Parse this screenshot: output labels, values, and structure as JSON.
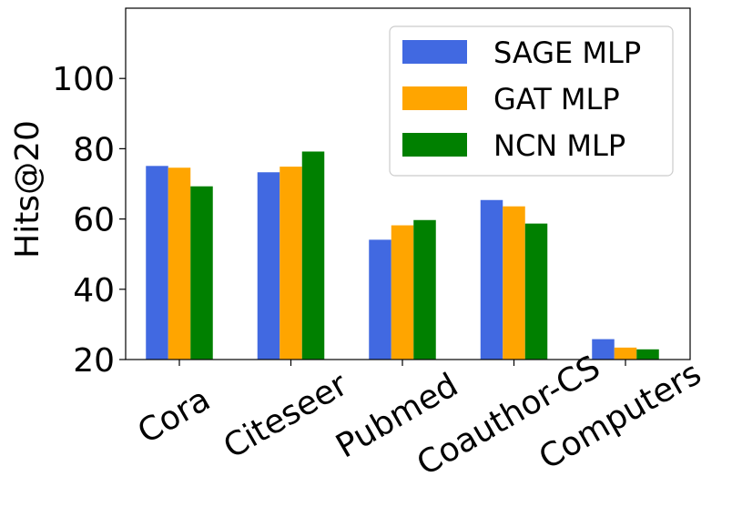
{
  "chart_data": {
    "type": "bar",
    "title": "",
    "xlabel": "",
    "ylabel": "Hits@20",
    "ylim": [
      20,
      120
    ],
    "yticks": [
      20,
      40,
      60,
      80,
      100
    ],
    "categories": [
      "Cora",
      "Citeseer",
      "Pubmed",
      "Coauthor-CS",
      "Computers"
    ],
    "series": [
      {
        "name": "SAGE MLP",
        "color": "#4169e1",
        "values": [
          75.1,
          73.3,
          54.1,
          65.4,
          25.8
        ]
      },
      {
        "name": "GAT MLP",
        "color": "#ffa500",
        "values": [
          74.6,
          74.9,
          58.2,
          63.6,
          23.4
        ]
      },
      {
        "name": "NCN MLP",
        "color": "#008000",
        "values": [
          69.3,
          79.2,
          59.7,
          58.7,
          22.9
        ]
      }
    ],
    "legend_position": "top-right",
    "grid": false
  }
}
